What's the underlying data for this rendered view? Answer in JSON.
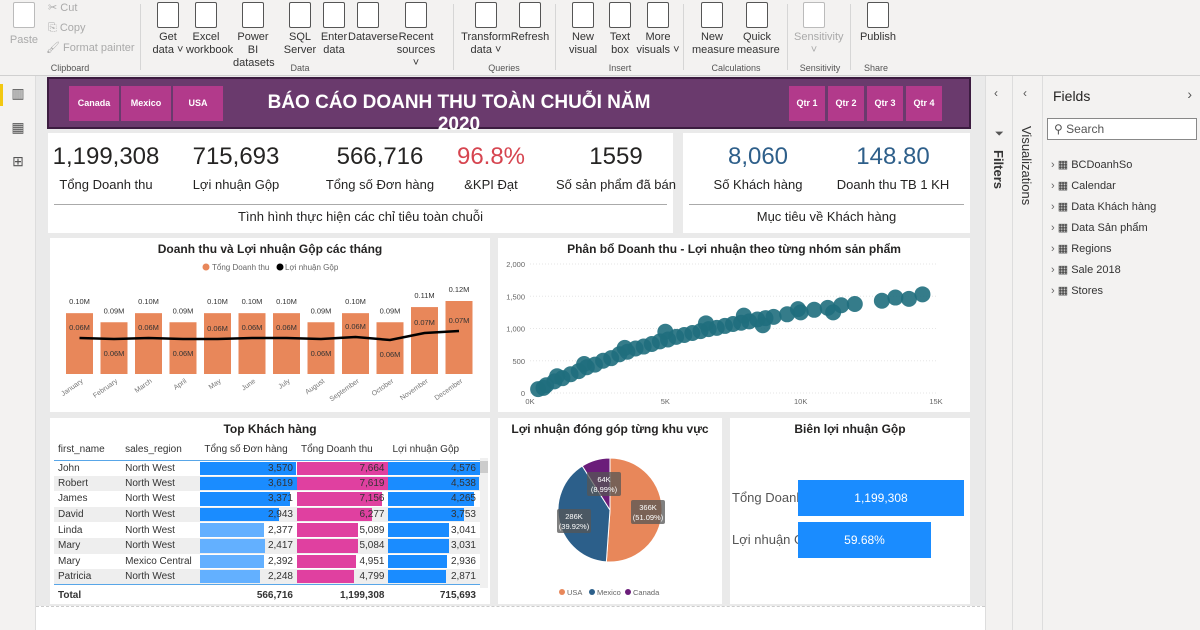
{
  "ribbon": {
    "clipboard": {
      "paste": "Paste",
      "cut": "Cut",
      "copy": "Copy",
      "format_painter": "Format painter",
      "group": "Clipboard"
    },
    "data": {
      "get_data": [
        "Get",
        "data ˅"
      ],
      "excel": [
        "Excel",
        "workbook"
      ],
      "pbi": [
        "Power BI",
        "datasets"
      ],
      "sql": [
        "SQL",
        "Server"
      ],
      "enter": [
        "Enter",
        "data"
      ],
      "dataverse": [
        "Dataverse",
        ""
      ],
      "recent": [
        "Recent",
        "sources ˅"
      ],
      "group": "Data"
    },
    "queries": {
      "transform": [
        "Transform",
        "data ˅"
      ],
      "refresh": [
        "Refresh",
        ""
      ],
      "group": "Queries"
    },
    "insert": {
      "new_visual": [
        "New",
        "visual"
      ],
      "text_box": [
        "Text",
        "box"
      ],
      "more_visuals": [
        "More",
        "visuals ˅"
      ],
      "group": "Insert"
    },
    "calculations": {
      "new_measure": [
        "New",
        "measure"
      ],
      "quick_measure": [
        "Quick",
        "measure"
      ],
      "group": "Calculations"
    },
    "sensitivity": {
      "label": [
        "Sensitivity",
        "˅"
      ],
      "group": "Sensitivity"
    },
    "share": {
      "publish": [
        "Publish",
        ""
      ],
      "group": "Share"
    }
  },
  "banner": {
    "title": "BÁO CÁO DOANH THU TOÀN CHUỖI NĂM 2020",
    "countries": [
      "Canada",
      "Mexico",
      "USA"
    ],
    "quarters": [
      "Qtr 1",
      "Qtr 2",
      "Qtr 3",
      "Qtr 4"
    ]
  },
  "kpi": {
    "items": [
      {
        "value": "1,199,308",
        "label": "Tổng Doanh thu"
      },
      {
        "value": "715,693",
        "label": "Lợi nhuận Gộp"
      },
      {
        "value": "566,716",
        "label": "Tổng số Đơn hàng"
      },
      {
        "value": "96.8%",
        "label": "&KPI Đạt"
      },
      {
        "value": "1559",
        "label": "Số sản phẩm đã bán"
      }
    ],
    "footer": "Tình hình thực hiện các chỉ tiêu toàn chuỗi",
    "kpi_color": "#d64550"
  },
  "customer": {
    "items": [
      {
        "value": "8,060",
        "label": "Số Khách hàng"
      },
      {
        "value": "148.80",
        "label": "Doanh thu TB 1 KH"
      }
    ],
    "footer": "Mục tiêu về Khách hàng",
    "value_color": "#2e5f8a"
  },
  "chart_data": [
    {
      "type": "bar+line",
      "title": "Doanh thu và Lợi nhuận Gộp các tháng",
      "categories": [
        "January",
        "February",
        "March",
        "April",
        "May",
        "June",
        "July",
        "August",
        "September",
        "October",
        "November",
        "December"
      ],
      "series": [
        {
          "name": "Tổng Doanh thu",
          "type": "bar",
          "color": "#e8875a",
          "values": [
            0.1,
            0.09,
            0.1,
            0.09,
            0.1,
            0.1,
            0.1,
            0.09,
            0.1,
            0.09,
            0.11,
            0.12
          ],
          "labels": [
            "0.10M",
            "0.09M",
            "0.10M",
            "0.09M",
            "0.10M",
            "0.10M",
            "0.10M",
            "0.09M",
            "0.10M",
            "0.09M",
            "0.11M",
            "0.12M"
          ]
        },
        {
          "name": "Lợi nhuận Gộp",
          "type": "line",
          "color": "#000000",
          "values": [
            0.06,
            0.06,
            0.06,
            0.06,
            0.06,
            0.06,
            0.06,
            0.06,
            0.06,
            0.06,
            0.07,
            0.07
          ],
          "labels": [
            "0.06M",
            "0.06M",
            "0.06M",
            "0.06M",
            "0.06M",
            "0.06M",
            "0.06M",
            "0.06M",
            "0.06M",
            "0.06M",
            "0.07M",
            "0.07M"
          ]
        }
      ],
      "legend": "top-center"
    },
    {
      "type": "scatter",
      "title": "Phân bổ Doanh thu - Lợi nhuận theo từng nhóm sản phẩm",
      "xlim": [
        0,
        15000
      ],
      "ylim": [
        0,
        2000
      ],
      "xticks": [
        "0K",
        "5K",
        "10K",
        "15K"
      ],
      "yticks": [
        "0",
        "500",
        "1,000",
        "1,500",
        "2,000"
      ],
      "color": "#1f6e7d",
      "points": [
        [
          300,
          60
        ],
        [
          600,
          120
        ],
        [
          900,
          180
        ],
        [
          1200,
          230
        ],
        [
          1500,
          290
        ],
        [
          1800,
          340
        ],
        [
          2100,
          400
        ],
        [
          2400,
          440
        ],
        [
          2700,
          500
        ],
        [
          3000,
          540
        ],
        [
          3300,
          600
        ],
        [
          3600,
          640
        ],
        [
          3900,
          690
        ],
        [
          4200,
          720
        ],
        [
          4500,
          760
        ],
        [
          4800,
          800
        ],
        [
          5100,
          830
        ],
        [
          5400,
          870
        ],
        [
          5700,
          900
        ],
        [
          6000,
          930
        ],
        [
          6300,
          960
        ],
        [
          6600,
          990
        ],
        [
          6900,
          1010
        ],
        [
          7200,
          1040
        ],
        [
          7500,
          1070
        ],
        [
          7800,
          1090
        ],
        [
          8100,
          1110
        ],
        [
          8400,
          1140
        ],
        [
          8700,
          1160
        ],
        [
          9000,
          1180
        ],
        [
          9500,
          1220
        ],
        [
          10000,
          1250
        ],
        [
          10500,
          1290
        ],
        [
          11000,
          1320
        ],
        [
          11500,
          1360
        ],
        [
          12000,
          1380
        ],
        [
          13000,
          1430
        ],
        [
          13500,
          1480
        ],
        [
          14000,
          1460
        ],
        [
          14500,
          1530
        ],
        [
          9900,
          1300
        ],
        [
          7900,
          1200
        ],
        [
          6500,
          1080
        ],
        [
          5000,
          950
        ],
        [
          3500,
          700
        ],
        [
          2000,
          450
        ],
        [
          1000,
          260
        ],
        [
          500,
          80
        ],
        [
          11200,
          1250
        ],
        [
          8600,
          1050
        ]
      ]
    },
    {
      "type": "pie",
      "title": "Lợi nhuận đóng góp từng khu vực",
      "slices": [
        {
          "name": "USA",
          "value": 366,
          "label": "366K\n(51.09%)",
          "color": "#e8875a"
        },
        {
          "name": "Mexico",
          "value": 286,
          "label": "286K\n(39.92%)",
          "color": "#2c5f8a"
        },
        {
          "name": "Canada",
          "value": 64,
          "label": "64K\n(8.99%)",
          "color": "#6b1d7a"
        }
      ],
      "legend": "bottom"
    },
    {
      "type": "bar",
      "title": "Biên lợi nhuận Gộp",
      "categories": [
        "Tổng Doanh thu",
        "Lợi nhuận Gộp"
      ],
      "values": [
        1199308,
        59.68
      ],
      "labels": [
        "1,199,308",
        "59.68%"
      ],
      "color": "#1a8cff"
    }
  ],
  "table": {
    "title": "Top Khách hàng",
    "columns": [
      "first_name",
      "sales_region",
      "Tổng số Đơn hàng",
      "Tổng Doanh thu",
      "Lợi nhuận Gộp"
    ],
    "rows": [
      [
        "John",
        "North West",
        "3,570",
        "7,664",
        "4,576"
      ],
      [
        "Robert",
        "North West",
        "3,619",
        "7,619",
        "4,538"
      ],
      [
        "James",
        "North West",
        "3,371",
        "7,156",
        "4,265"
      ],
      [
        "David",
        "North West",
        "2,943",
        "6,277",
        "3,753"
      ],
      [
        "Linda",
        "North West",
        "2,377",
        "5,089",
        "3,041"
      ],
      [
        "Mary",
        "North West",
        "2,417",
        "5,084",
        "3,031"
      ],
      [
        "Mary",
        "Mexico Central",
        "2,392",
        "4,951",
        "2,936"
      ],
      [
        "Patricia",
        "North West",
        "2,248",
        "4,799",
        "2,871"
      ]
    ],
    "total": [
      "Total",
      "",
      "566,716",
      "1,199,308",
      "715,693"
    ]
  },
  "panes": {
    "filters": "Filters",
    "visualizations": "Visualizations",
    "fields": "Fields",
    "search_placeholder": "Search",
    "field_tables": [
      "BCDoanhSo",
      "Calendar",
      "Data Khách hàng",
      "Data Sản phẩm",
      "Regions",
      "Sale 2018",
      "Stores"
    ]
  }
}
